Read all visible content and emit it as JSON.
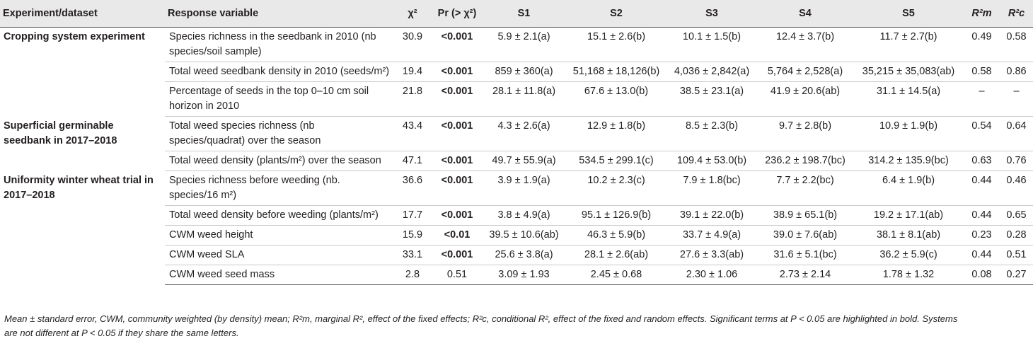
{
  "headers": {
    "experiment": "Experiment/dataset",
    "response": "Response variable",
    "chi2": "χ²",
    "pr": "Pr (> χ²)",
    "s1": "S1",
    "s2": "S2",
    "s3": "S3",
    "s4": "S4",
    "s5": "S5",
    "r2m": "R²m",
    "r2c": "R²c"
  },
  "groups": [
    {
      "name": "Cropping system experiment",
      "rows": [
        {
          "response": "Species richness in the seedbank in 2010 (nb species/soil sample)",
          "chi2": "30.9",
          "pr": "<0.001",
          "pr_bold": true,
          "s1": "5.9 ± 2.1(a)",
          "s2": "15.1 ± 2.6(b)",
          "s3": "10.1 ± 1.5(b)",
          "s4": "12.4 ± 3.7(b)",
          "s5": "11.7 ± 2.7(b)",
          "r2m": "0.49",
          "r2c": "0.58"
        },
        {
          "response": "Total weed seedbank density in 2010 (seeds/m²)",
          "chi2": "19.4",
          "pr": "<0.001",
          "pr_bold": true,
          "s1": "859 ± 360(a)",
          "s2": "51,168 ± 18,126(b)",
          "s3": "4,036 ± 2,842(a)",
          "s4": "5,764 ± 2,528(a)",
          "s5": "35,215 ± 35,083(ab)",
          "r2m": "0.58",
          "r2c": "0.86"
        },
        {
          "response": "Percentage of seeds in the top 0–10 cm soil horizon in 2010",
          "chi2": "21.8",
          "pr": "<0.001",
          "pr_bold": true,
          "s1": "28.1 ± 11.8(a)",
          "s2": "67.6 ± 13.0(b)",
          "s3": "38.5 ± 23.1(a)",
          "s4": "41.9 ± 20.6(ab)",
          "s5": "31.1 ± 14.5(a)",
          "r2m": "–",
          "r2c": "–"
        }
      ]
    },
    {
      "name": "Superficial germinable seedbank in 2017–2018",
      "rows": [
        {
          "response": "Total weed species richness (nb species/quadrat) over the season",
          "chi2": "43.4",
          "pr": "<0.001",
          "pr_bold": true,
          "s1": "4.3 ± 2.6(a)",
          "s2": "12.9 ± 1.8(b)",
          "s3": "8.5 ± 2.3(b)",
          "s4": "9.7 ± 2.8(b)",
          "s5": "10.9 ± 1.9(b)",
          "r2m": "0.54",
          "r2c": "0.64"
        },
        {
          "response": "Total weed density (plants/m²) over the season",
          "chi2": "47.1",
          "pr": "<0.001",
          "pr_bold": true,
          "s1": "49.7 ± 55.9(a)",
          "s2": "534.5 ± 299.1(c)",
          "s3": "109.4 ± 53.0(b)",
          "s4": "236.2 ± 198.7(bc)",
          "s5": "314.2 ± 135.9(bc)",
          "r2m": "0.63",
          "r2c": "0.76"
        }
      ]
    },
    {
      "name": "Uniformity winter wheat trial in 2017–2018",
      "rows": [
        {
          "response": "Species richness before weeding (nb. species/16 m²)",
          "chi2": "36.6",
          "pr": "<0.001",
          "pr_bold": true,
          "s1": "3.9 ± 1.9(a)",
          "s2": "10.2 ± 2.3(c)",
          "s3": "7.9 ± 1.8(bc)",
          "s4": "7.7 ± 2.2(bc)",
          "s5": "6.4 ± 1.9(b)",
          "r2m": "0.44",
          "r2c": "0.46"
        },
        {
          "response": "Total weed density before weeding (plants/m²)",
          "chi2": "17.7",
          "pr": "<0.001",
          "pr_bold": true,
          "s1": "3.8 ± 4.9(a)",
          "s2": "95.1 ± 126.9(b)",
          "s3": "39.1 ± 22.0(b)",
          "s4": "38.9 ± 65.1(b)",
          "s5": "19.2 ± 17.1(ab)",
          "r2m": "0.44",
          "r2c": "0.65"
        },
        {
          "response": "CWM weed height",
          "chi2": "15.9",
          "pr": "<0.01",
          "pr_bold": true,
          "s1": "39.5 ± 10.6(ab)",
          "s2": "46.3 ± 5.9(b)",
          "s3": "33.7 ± 4.9(a)",
          "s4": "39.0 ± 7.6(ab)",
          "s5": "38.1 ± 8.1(ab)",
          "r2m": "0.23",
          "r2c": "0.28"
        },
        {
          "response": "CWM weed SLA",
          "chi2": "33.1",
          "pr": "<0.001",
          "pr_bold": true,
          "s1": "25.6 ± 3.8(a)",
          "s2": "28.1 ± 2.6(ab)",
          "s3": "27.6 ± 3.3(ab)",
          "s4": "31.6 ± 5.1(bc)",
          "s5": "36.2 ± 5.9(c)",
          "r2m": "0.44",
          "r2c": "0.51"
        },
        {
          "response": "CWM weed seed mass",
          "chi2": "2.8",
          "pr": "0.51",
          "pr_bold": false,
          "s1": "3.09 ± 1.93",
          "s2": "2.45 ± 0.68",
          "s3": "2.30 ± 1.06",
          "s4": "2.73 ± 2.14",
          "s5": "1.78 ± 1.32",
          "r2m": "0.08",
          "r2c": "0.27"
        }
      ]
    }
  ],
  "footnote": {
    "line1": "Mean ± standard error, CWM, community weighted (by density) mean; R²m, marginal R², effect of the fixed effects; R²c, conditional R², effect of the fixed and random effects. Significant terms at P < 0.05 are highlighted in bold. Systems",
    "line2": "are not different at P < 0.05 if they share the same letters."
  }
}
